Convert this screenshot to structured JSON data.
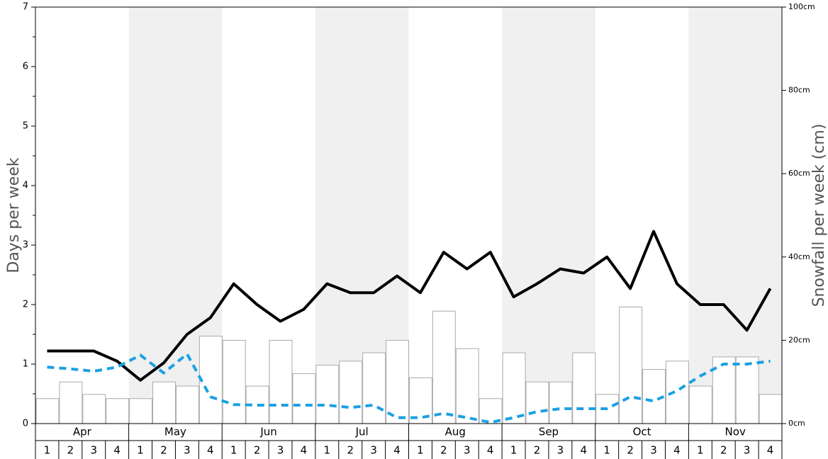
{
  "chart_data": {
    "type": "bar",
    "ylabel": "Days per week",
    "y2label": "Snowfall per week (cm)",
    "months": [
      "Apr",
      "May",
      "Jun",
      "Jul",
      "Aug",
      "Sep",
      "Oct",
      "Nov"
    ],
    "categories": [
      "1",
      "2",
      "3",
      "4",
      "1",
      "2",
      "3",
      "4",
      "1",
      "2",
      "3",
      "4",
      "1",
      "2",
      "3",
      "4",
      "1",
      "2",
      "3",
      "4",
      "1",
      "2",
      "3",
      "4",
      "1",
      "2",
      "3",
      "4",
      "1",
      "2",
      "3",
      "4"
    ],
    "ylim": [
      0,
      7
    ],
    "yticks": [
      0,
      1,
      2,
      3,
      4,
      5,
      6,
      7
    ],
    "y2lim": [
      0,
      100
    ],
    "y2ticks": [
      {
        "value": 0,
        "label": "0cm"
      },
      {
        "value": 20,
        "label": "20cm"
      },
      {
        "value": 40,
        "label": "40cm"
      },
      {
        "value": 60,
        "label": "60cm"
      },
      {
        "value": 80,
        "label": "80cm"
      },
      {
        "value": 100,
        "label": "100cm"
      }
    ],
    "series": [
      {
        "type": "bar",
        "axis": "y2",
        "color": "#ffffff",
        "values": [
          6,
          10,
          7,
          6,
          6,
          10,
          9,
          21,
          20,
          9,
          20,
          12,
          14,
          15,
          17,
          20,
          11,
          27,
          18,
          6,
          17,
          10,
          10,
          17,
          7,
          28,
          13,
          15,
          9,
          16,
          16,
          7
        ]
      },
      {
        "type": "line",
        "color": "#000000",
        "values": [
          1.22,
          1.22,
          1.22,
          1.05,
          0.73,
          1.02,
          1.5,
          1.78,
          2.35,
          2.0,
          1.72,
          1.92,
          2.35,
          2.2,
          2.2,
          2.48,
          2.2,
          2.88,
          2.6,
          2.88,
          2.13,
          2.35,
          2.6,
          2.53,
          2.8,
          2.27,
          3.23,
          2.35,
          2.0,
          2.0,
          1.57,
          2.27
        ]
      },
      {
        "type": "line",
        "dashed": true,
        "color": "#1ba1e2",
        "values": [
          0.95,
          0.92,
          0.88,
          0.95,
          1.15,
          0.85,
          1.17,
          0.45,
          0.32,
          0.31,
          0.31,
          0.31,
          0.31,
          0.27,
          0.31,
          0.1,
          0.1,
          0.17,
          0.1,
          0.02,
          0.1,
          0.2,
          0.25,
          0.25,
          0.25,
          0.45,
          0.38,
          0.55,
          0.8,
          1.0,
          1.0,
          1.05
        ]
      }
    ]
  }
}
